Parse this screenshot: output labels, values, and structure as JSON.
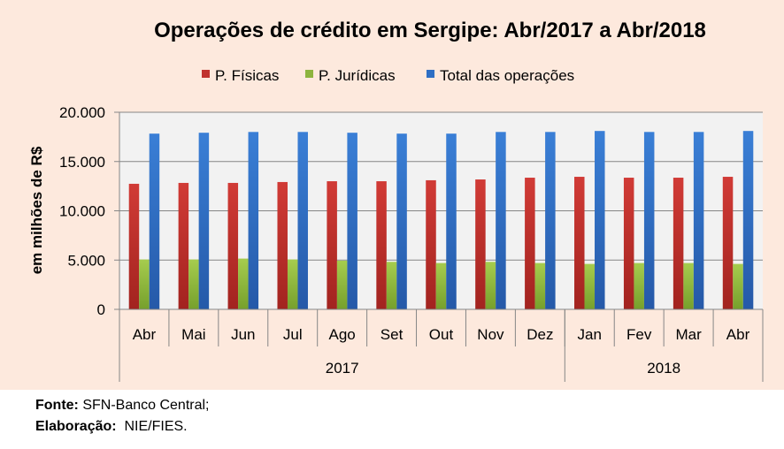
{
  "chart_data": {
    "type": "bar",
    "title": "Operações de crédito em Sergipe: Abr/2017 a Abr/2018",
    "ylabel": "em milhões de R$",
    "xlabel": "",
    "ylim": [
      0,
      20000
    ],
    "yticks": [
      0,
      5000,
      10000,
      15000,
      20000
    ],
    "ytick_labels": [
      "0",
      "5.000",
      "10.000",
      "15.000",
      "20.000"
    ],
    "grid": true,
    "legend_position": "top",
    "categories": [
      "Abr",
      "Mai",
      "Jun",
      "Jul",
      "Ago",
      "Set",
      "Out",
      "Nov",
      "Dez",
      "Jan",
      "Fev",
      "Mar",
      "Abr"
    ],
    "groups": [
      {
        "label": "2017",
        "count": 9
      },
      {
        "label": "2018",
        "count": 4
      }
    ],
    "series": [
      {
        "name": "P. Físicas",
        "color": "#c0322e",
        "values": [
          12740,
          12830,
          12830,
          12920,
          13000,
          13000,
          13100,
          13180,
          13360,
          13450,
          13360,
          13360,
          13450
        ]
      },
      {
        "name": "P. Jurídicas",
        "color": "#8db43e",
        "values": [
          5060,
          5060,
          5150,
          5060,
          4940,
          4820,
          4700,
          4820,
          4700,
          4610,
          4700,
          4700,
          4610
        ]
      },
      {
        "name": "Total das operações",
        "color": "#2e6fc4",
        "values": [
          17830,
          17920,
          18000,
          18000,
          17920,
          17830,
          17830,
          18000,
          18000,
          18100,
          18000,
          18000,
          18100
        ]
      }
    ]
  },
  "footer": {
    "source_label": "Fonte:",
    "source_value": "SFN-Banco Central;",
    "credit_label": "Elaboração:",
    "credit_value": "NIE/FIES."
  }
}
